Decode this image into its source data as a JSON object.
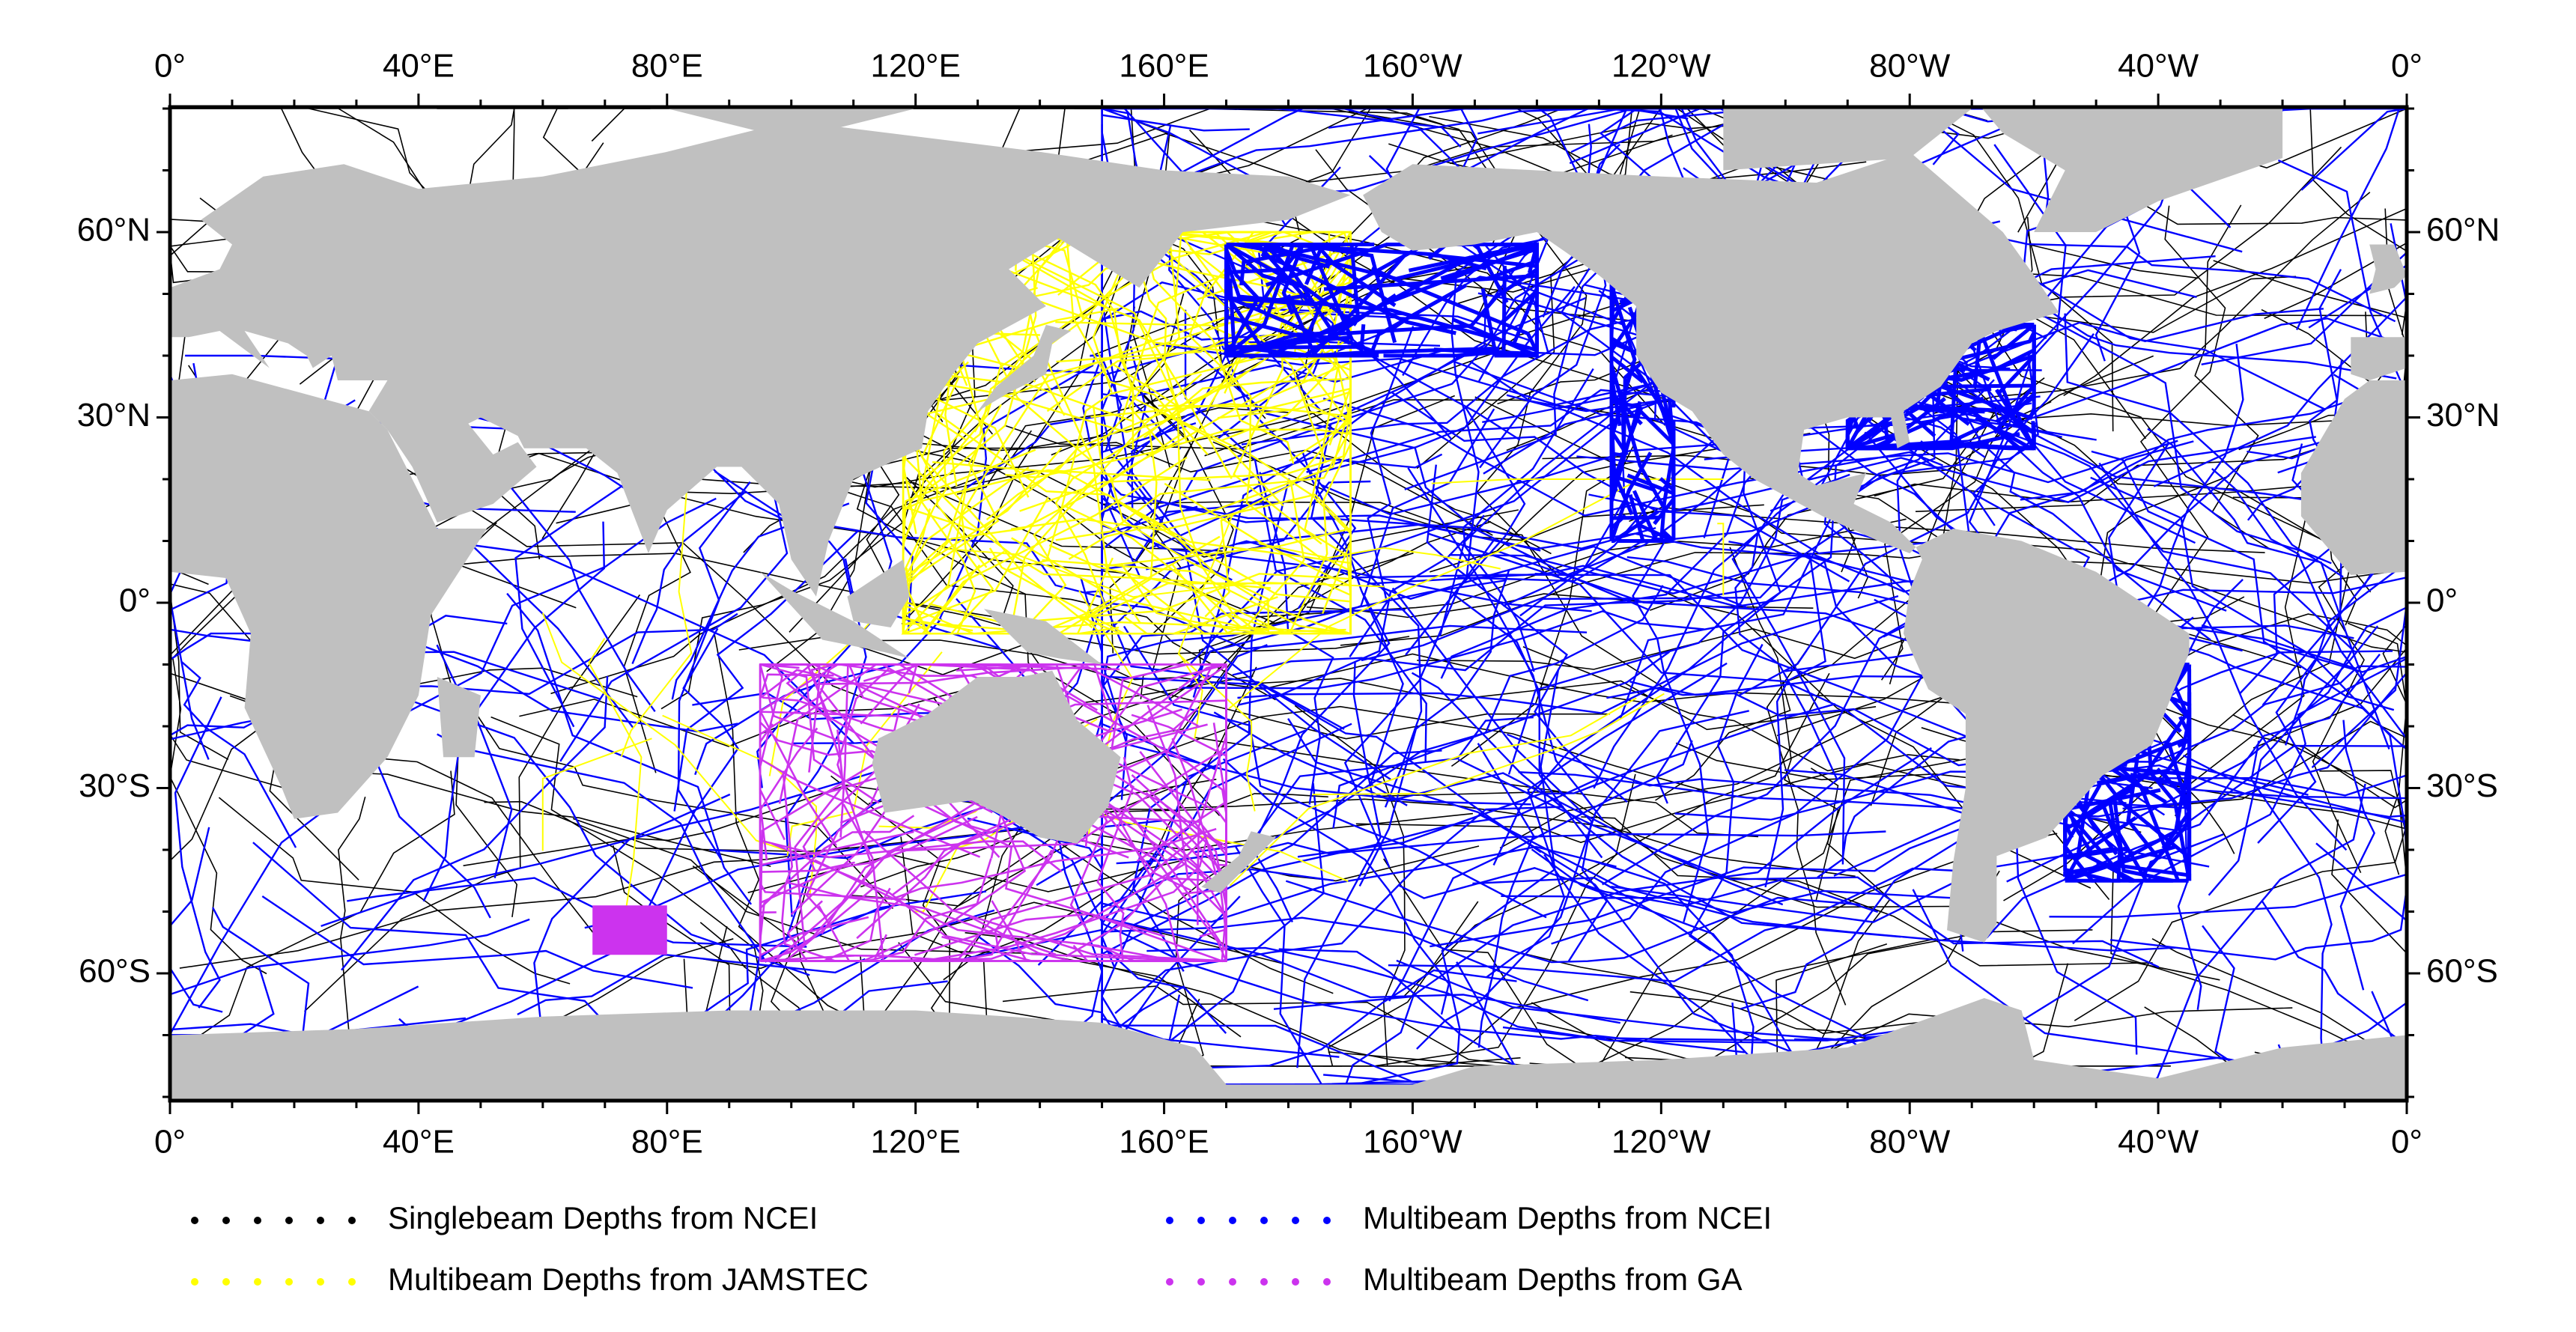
{
  "map": {
    "top_labels": [
      "0°",
      "40°E",
      "80°E",
      "120°E",
      "160°E",
      "160°W",
      "120°W",
      "80°W",
      "40°W",
      "0°"
    ],
    "bottom_labels": [
      "0°",
      "40°E",
      "80°E",
      "120°E",
      "160°E",
      "160°W",
      "120°W",
      "80°W",
      "40°W",
      "0°"
    ],
    "left_labels": [
      "60°N",
      "30°N",
      "0°",
      "30°S",
      "60°S"
    ],
    "right_labels": [
      "60°N",
      "30°N",
      "0°",
      "30°S",
      "60°S"
    ],
    "legend": [
      {
        "label": "Singlebeam Depths from NCEI",
        "color": "#000000"
      },
      {
        "label": "Multibeam Depths from NCEI",
        "color": "#0000ff"
      },
      {
        "label": "Multibeam Depths from JAMSTEC",
        "color": "#ffff00"
      },
      {
        "label": "Multibeam Depths from GA",
        "color": "#cc33ee"
      }
    ]
  }
}
